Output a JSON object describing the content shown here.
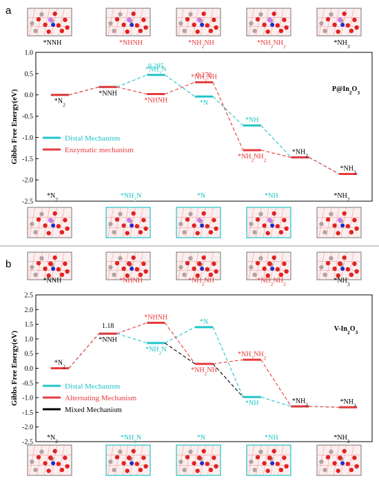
{
  "colors": {
    "distal": "#20c4c8",
    "red": "#e8393b",
    "black": "#000000"
  },
  "chart_data": [
    {
      "type": "line",
      "panel": "a",
      "title": "P@In2O3",
      "ylabel": "Gibbs Free Energy(eV)",
      "ylim": [
        -2.5,
        1.0
      ],
      "yticks": [
        "1.0",
        "0.5",
        "0.0",
        "-0.5",
        "-1.0",
        "-1.5",
        "-2.0",
        "-2.5"
      ],
      "legend_position": "left",
      "top_structure_labels": [
        "*NNH",
        "*NHNH",
        "*NH2NH",
        "*NH2NH2",
        "*NH3"
      ],
      "bottom_structure_labels": [
        "*N2",
        "*NH2N",
        "*N",
        "*NH",
        "*NH2"
      ],
      "series": [
        {
          "name": "Distal Mechanism",
          "color_key": "distal",
          "steps": [
            {
              "x": 1,
              "y": 0.0,
              "label": "*N2"
            },
            {
              "x": 2,
              "y": 0.185,
              "label": "*NNH"
            },
            {
              "x": 3,
              "y": 0.47,
              "label": "*NH2N"
            },
            {
              "x": 4,
              "y": -0.04,
              "label": "*N"
            },
            {
              "x": 5,
              "y": -0.72,
              "label": "*NH"
            },
            {
              "x": 6,
              "y": -1.47,
              "label": "*NH2"
            },
            {
              "x": 7,
              "y": -1.86,
              "label": "*NH3"
            }
          ]
        },
        {
          "name": "Enzymatic mechanism",
          "color_key": "red",
          "steps": [
            {
              "x": 1,
              "y": 0.0,
              "label": "*N2"
            },
            {
              "x": 2,
              "y": 0.185,
              "label": "*NNH"
            },
            {
              "x": 3,
              "y": 0.02,
              "label": "*NHNH"
            },
            {
              "x": 4,
              "y": 0.298,
              "label": "*NH2NH"
            },
            {
              "x": 5,
              "y": -1.3,
              "label": "*NH2NH2"
            },
            {
              "x": 6,
              "y": -1.47,
              "label": "*NH2"
            },
            {
              "x": 7,
              "y": -1.86,
              "label": "*NH3"
            }
          ]
        }
      ],
      "annotations": [
        {
          "text": "0.285",
          "color_key": "distal"
        },
        {
          "text": "0.278",
          "color_key": "red"
        }
      ]
    },
    {
      "type": "line",
      "panel": "b",
      "title": "V-In2O3",
      "ylabel": "Gibbs Free Energy(eV)",
      "ylim": [
        -2.5,
        2.5
      ],
      "yticks": [
        "2.5",
        "2.0",
        "1.5",
        "1.0",
        "0.5",
        "0.0",
        "-0.5",
        "-1.0",
        "-1.5",
        "-2.0",
        "-2.5"
      ],
      "legend_position": "left",
      "top_structure_labels": [
        "*NNH",
        "*NHNH",
        "*NH2NH",
        "*NH2NH2",
        "*NH3"
      ],
      "bottom_structure_labels": [
        "*N2",
        "*NH2N",
        "*N",
        "*NH",
        "*NH2"
      ],
      "series": [
        {
          "name": "Distal Mechanism",
          "color_key": "distal",
          "steps": [
            {
              "x": 1,
              "y": 0.0,
              "label": "*N2"
            },
            {
              "x": 2,
              "y": 1.18,
              "label": "*NNH"
            },
            {
              "x": 3,
              "y": 0.86,
              "label": "*NH2N"
            },
            {
              "x": 4,
              "y": 1.4,
              "label": "*N"
            },
            {
              "x": 5,
              "y": -0.98,
              "label": "*NH"
            },
            {
              "x": 6,
              "y": -1.3,
              "label": "*NH2"
            },
            {
              "x": 7,
              "y": -1.33,
              "label": "*NH3"
            }
          ]
        },
        {
          "name": "Alternating Mechanism",
          "color_key": "red",
          "steps": [
            {
              "x": 1,
              "y": 0.0,
              "label": "*N2"
            },
            {
              "x": 2,
              "y": 1.18,
              "label": "*NNH"
            },
            {
              "x": 3,
              "y": 1.55,
              "label": "*NHNH"
            },
            {
              "x": 4,
              "y": 0.15,
              "label": "*NH2NH"
            },
            {
              "x": 5,
              "y": 0.29,
              "label": "*NH2NH2"
            },
            {
              "x": 6,
              "y": -1.3,
              "label": "*NH2"
            },
            {
              "x": 7,
              "y": -1.33,
              "label": "*NH3"
            }
          ]
        },
        {
          "name": "Mixed Mechanism",
          "color_key": "black",
          "steps": [
            {
              "x": 3,
              "y": 0.86,
              "label": ""
            },
            {
              "x": 4,
              "y": 0.15,
              "label": ""
            },
            {
              "x": 5,
              "y": -0.98,
              "label": ""
            }
          ]
        }
      ],
      "annotations": [
        {
          "text": "1.18",
          "color_key": "black"
        }
      ]
    }
  ]
}
